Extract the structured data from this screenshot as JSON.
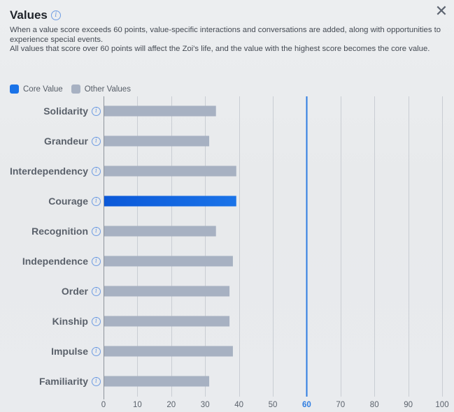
{
  "dialog": {
    "title": "Values",
    "close_label": "✕",
    "description_line1": "When a value score exceeds 60 points, value-specific interactions and conversations are added, along with opportunities to experience special events.",
    "description_line2": "All values that score over 60 points will affect the Zoi's life, and the value with the highest score becomes the core value."
  },
  "legend": {
    "core_label": "Core Value",
    "other_label": "Other Values"
  },
  "colors": {
    "core": "#1a73e8",
    "other": "#a7b1c2",
    "threshold": "#2f7de1",
    "grid": "#c9cdd3",
    "info_icon": "#6f9de3"
  },
  "icons": {
    "info": "info-icon",
    "close": "close-icon"
  },
  "chart_data": {
    "type": "bar",
    "orientation": "horizontal",
    "categories": [
      "Solidarity",
      "Grandeur",
      "Interdependency",
      "Courage",
      "Recognition",
      "Independence",
      "Order",
      "Kinship",
      "Impulse",
      "Familiarity"
    ],
    "values": [
      33,
      31,
      39,
      39,
      33,
      38,
      37,
      37,
      38,
      31
    ],
    "core": [
      false,
      false,
      false,
      true,
      false,
      false,
      false,
      false,
      false,
      false
    ],
    "xlim": [
      0,
      100
    ],
    "xticks": [
      "0",
      "10",
      "20",
      "30",
      "40",
      "50",
      "60",
      "70",
      "80",
      "90",
      "100"
    ],
    "threshold": 60,
    "grid": true
  }
}
